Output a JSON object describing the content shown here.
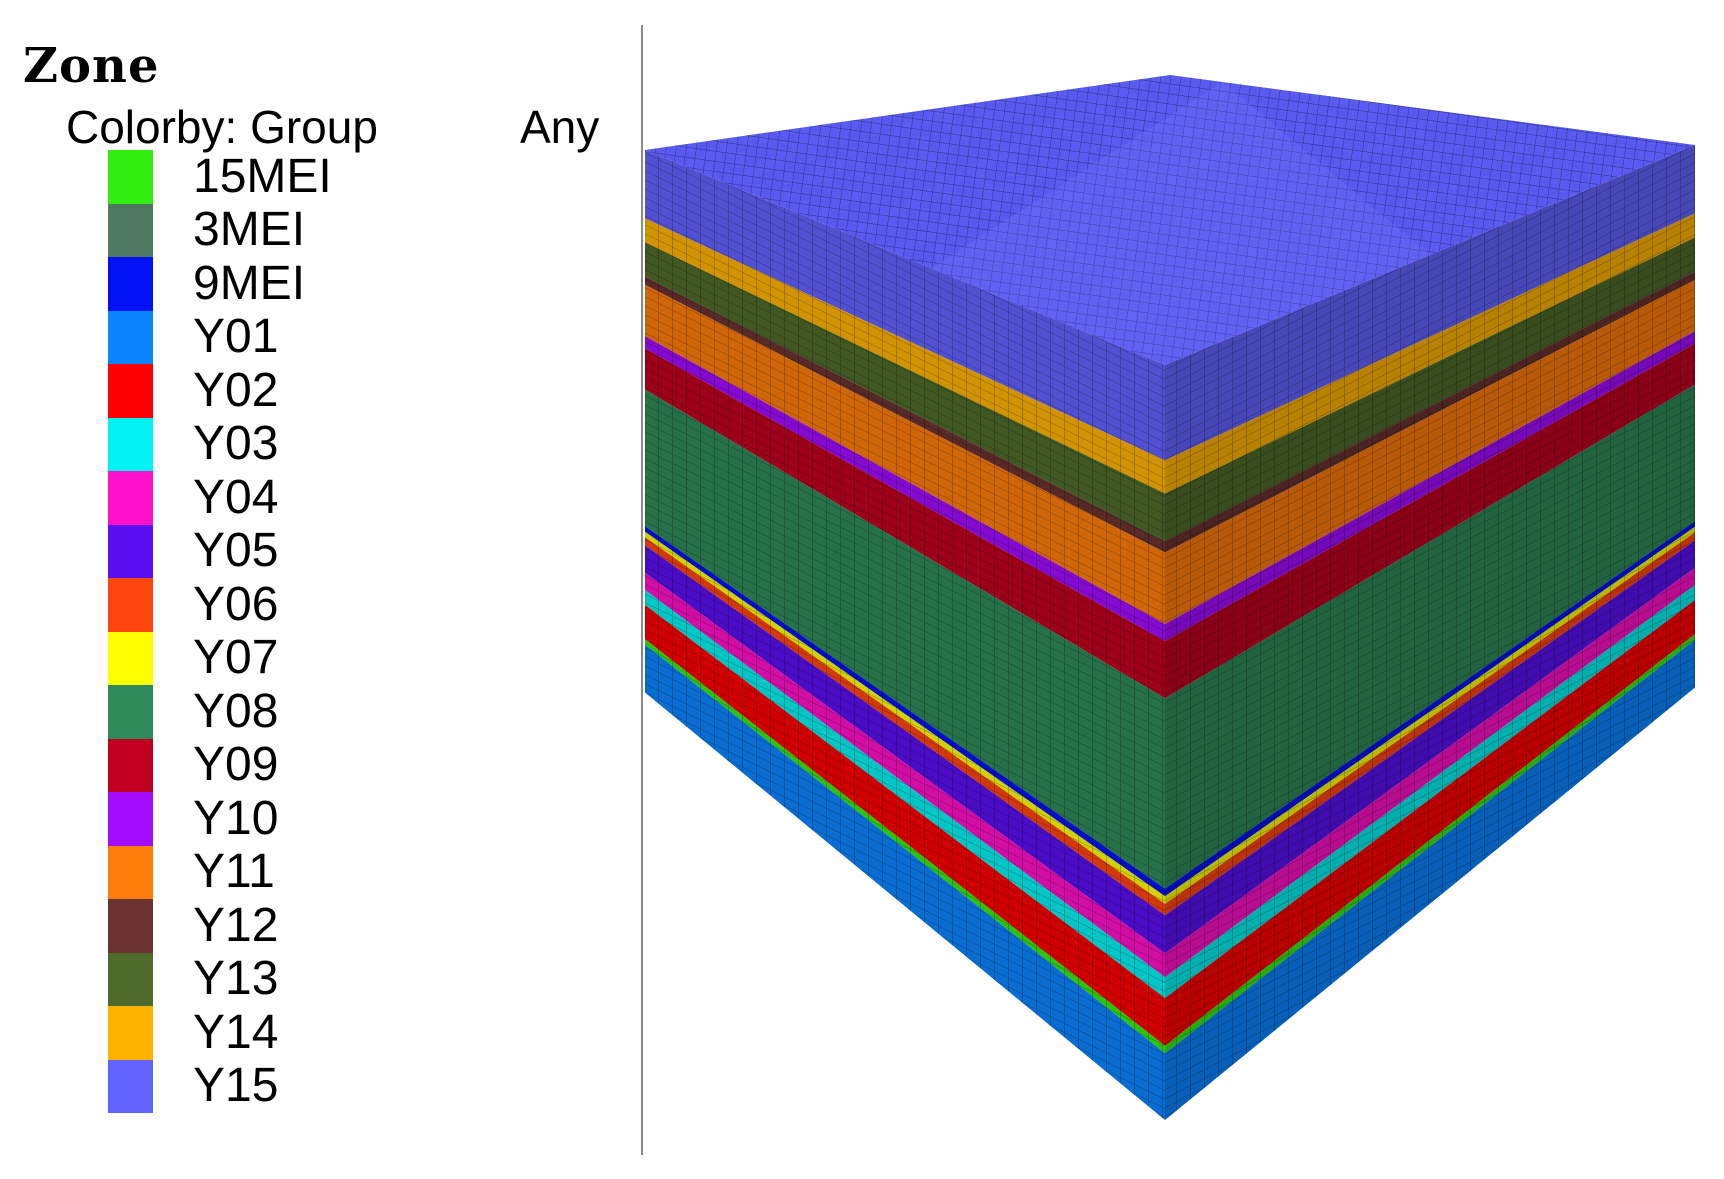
{
  "legend": {
    "title": "Zone",
    "colorby_label": "Colorby: Group",
    "colorby_mode": "Any",
    "items": [
      {
        "label": "15MEI",
        "color": "#33ee11"
      },
      {
        "label": "3MEI",
        "color": "#4e7a63"
      },
      {
        "label": "9MEI",
        "color": "#0012f5"
      },
      {
        "label": "Y01",
        "color": "#0a84ff"
      },
      {
        "label": "Y02",
        "color": "#ff0000"
      },
      {
        "label": "Y03",
        "color": "#00f2f2"
      },
      {
        "label": "Y04",
        "color": "#ff10c8"
      },
      {
        "label": "Y05",
        "color": "#5a10f0"
      },
      {
        "label": "Y06",
        "color": "#ff4510"
      },
      {
        "label": "Y07",
        "color": "#ffff00"
      },
      {
        "label": "Y08",
        "color": "#2e8a58"
      },
      {
        "label": "Y09",
        "color": "#c0001e"
      },
      {
        "label": "Y10",
        "color": "#a20cff"
      },
      {
        "label": "Y11",
        "color": "#ff7c0a"
      },
      {
        "label": "Y12",
        "color": "#6a3330"
      },
      {
        "label": "Y13",
        "color": "#4e6a2a"
      },
      {
        "label": "Y14",
        "color": "#ffb300"
      },
      {
        "label": "Y15",
        "color": "#6262ff"
      }
    ]
  },
  "model": {
    "top_color": "#5a5af0",
    "strata_top_to_bottom": [
      {
        "group": "Y15",
        "fraction": 0.1
      },
      {
        "group": "Y14",
        "fraction": 0.035
      },
      {
        "group": "Y13",
        "fraction": 0.05
      },
      {
        "group": "Y12",
        "fraction": 0.012
      },
      {
        "group": "Y11",
        "fraction": 0.075
      },
      {
        "group": "Y10",
        "fraction": 0.018
      },
      {
        "group": "Y09",
        "fraction": 0.06
      },
      {
        "group": "Y08",
        "fraction": 0.2
      },
      {
        "group": "9MEI",
        "fraction": 0.008
      },
      {
        "group": "Y07",
        "fraction": 0.008
      },
      {
        "group": "Y06",
        "fraction": 0.012
      },
      {
        "group": "Y05",
        "fraction": 0.04
      },
      {
        "group": "Y04",
        "fraction": 0.025
      },
      {
        "group": "Y03",
        "fraction": 0.022
      },
      {
        "group": "Y02",
        "fraction": 0.05
      },
      {
        "group": "15MEI",
        "fraction": 0.008
      },
      {
        "group": "Y01",
        "fraction": 0.07
      }
    ]
  }
}
